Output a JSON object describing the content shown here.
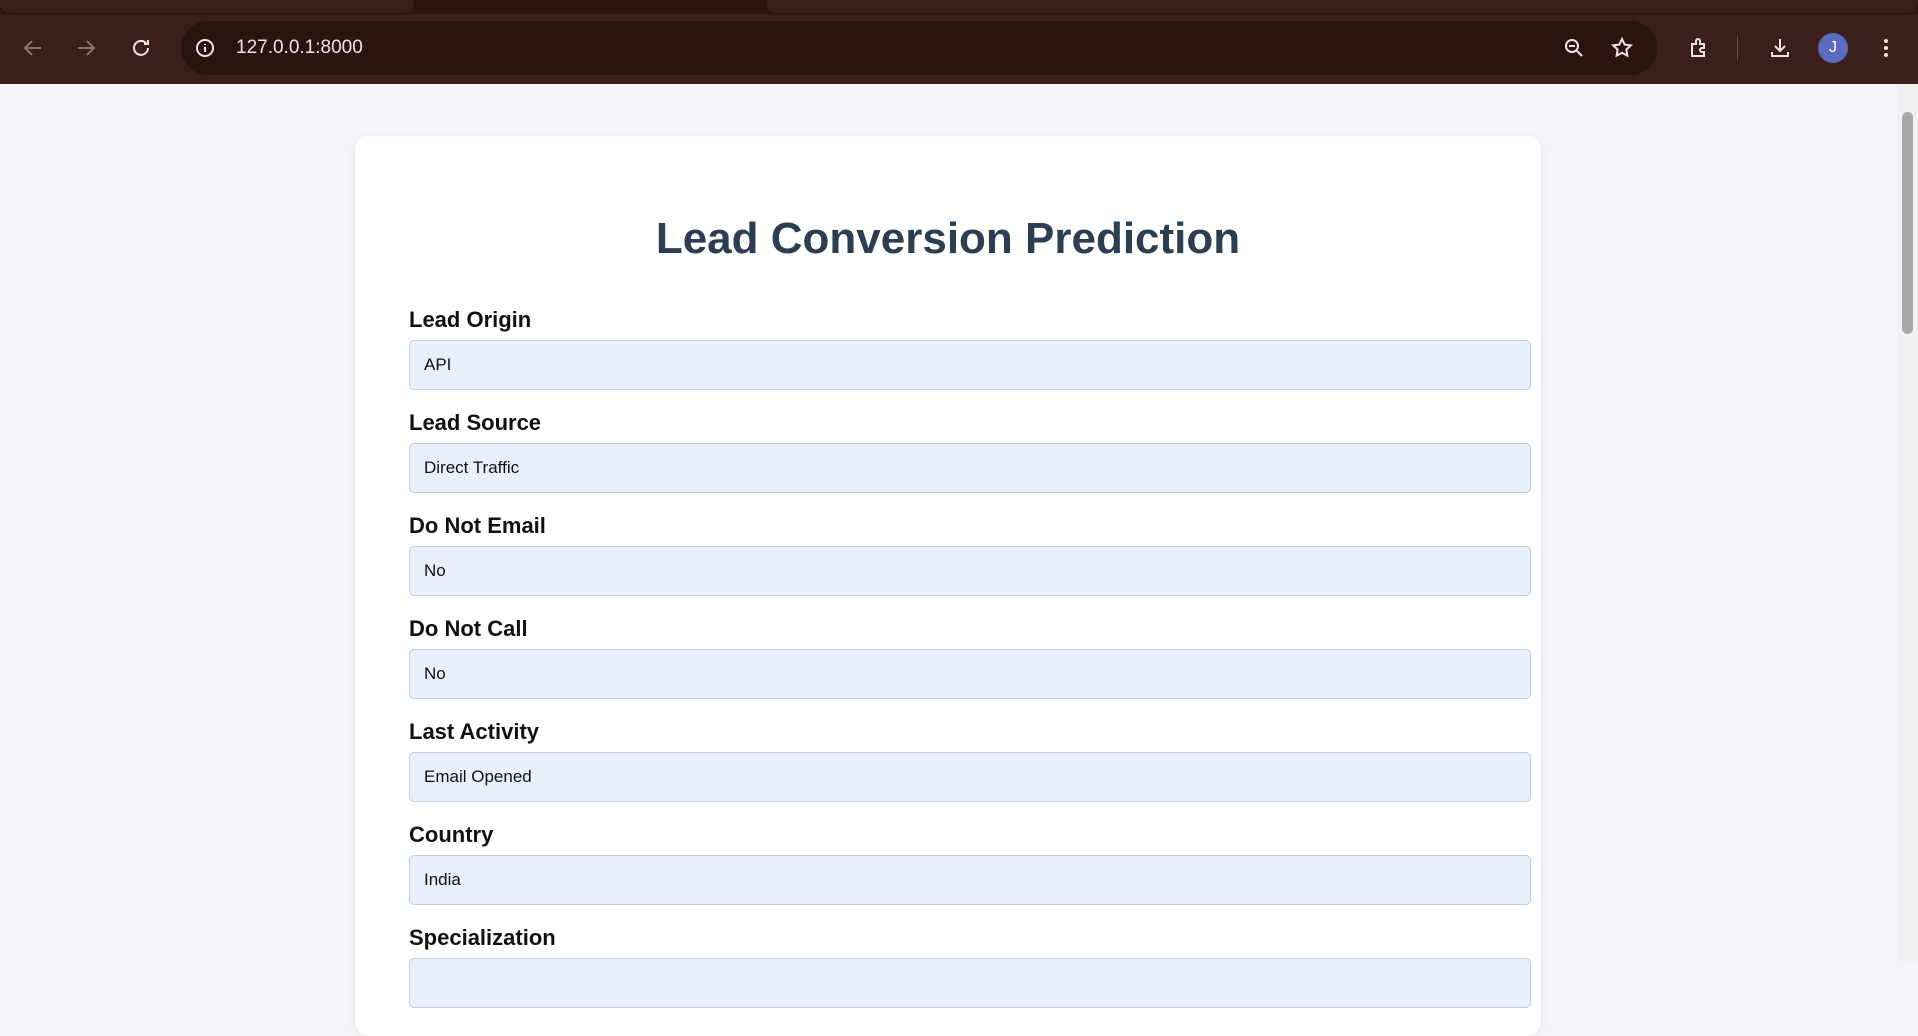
{
  "browser": {
    "url": "127.0.0.1:8000",
    "avatar": "J"
  },
  "form": {
    "title": "Lead Conversion Prediction",
    "fields": [
      {
        "label": "Lead Origin",
        "value": "API"
      },
      {
        "label": "Lead Source",
        "value": "Direct Traffic"
      },
      {
        "label": "Do Not Email",
        "value": "No"
      },
      {
        "label": "Do Not Call",
        "value": "No"
      },
      {
        "label": "Last Activity",
        "value": "Email Opened"
      },
      {
        "label": "Country",
        "value": "India"
      },
      {
        "label": "Specialization"
      }
    ]
  }
}
